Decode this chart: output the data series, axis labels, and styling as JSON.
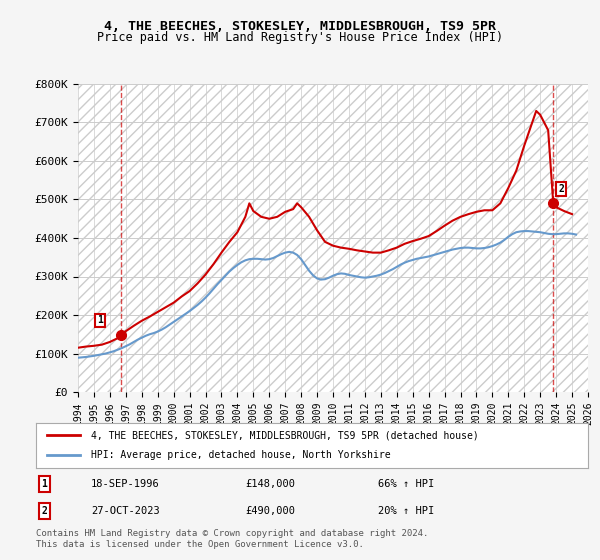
{
  "title": "4, THE BEECHES, STOKESLEY, MIDDLESBROUGH, TS9 5PR",
  "subtitle": "Price paid vs. HM Land Registry's House Price Index (HPI)",
  "legend_line1": "4, THE BEECHES, STOKESLEY, MIDDLESBROUGH, TS9 5PR (detached house)",
  "legend_line2": "HPI: Average price, detached house, North Yorkshire",
  "footnote": "Contains HM Land Registry data © Crown copyright and database right 2024.\nThis data is licensed under the Open Government Licence v3.0.",
  "annotation1_label": "1",
  "annotation1_date": "18-SEP-1996",
  "annotation1_price": "£148,000",
  "annotation1_hpi": "66% ↑ HPI",
  "annotation2_label": "2",
  "annotation2_date": "27-OCT-2023",
  "annotation2_price": "£490,000",
  "annotation2_hpi": "20% ↑ HPI",
  "hpi_color": "#6699cc",
  "price_color": "#cc0000",
  "background_color": "#f5f5f5",
  "plot_bg_color": "#ffffff",
  "ylim": [
    0,
    800000
  ],
  "yticks": [
    0,
    100000,
    200000,
    300000,
    400000,
    500000,
    600000,
    700000,
    800000
  ],
  "ytick_labels": [
    "£0",
    "£100K",
    "£200K",
    "£300K",
    "£400K",
    "£500K",
    "£600K",
    "£700K",
    "£800K"
  ],
  "hpi_x": [
    1994.0,
    1994.25,
    1994.5,
    1994.75,
    1995.0,
    1995.25,
    1995.5,
    1995.75,
    1996.0,
    1996.25,
    1996.5,
    1996.75,
    1997.0,
    1997.25,
    1997.5,
    1997.75,
    1998.0,
    1998.25,
    1998.5,
    1998.75,
    1999.0,
    1999.25,
    1999.5,
    1999.75,
    2000.0,
    2000.25,
    2000.5,
    2000.75,
    2001.0,
    2001.25,
    2001.5,
    2001.75,
    2002.0,
    2002.25,
    2002.5,
    2002.75,
    2003.0,
    2003.25,
    2003.5,
    2003.75,
    2004.0,
    2004.25,
    2004.5,
    2004.75,
    2005.0,
    2005.25,
    2005.5,
    2005.75,
    2006.0,
    2006.25,
    2006.5,
    2006.75,
    2007.0,
    2007.25,
    2007.5,
    2007.75,
    2008.0,
    2008.25,
    2008.5,
    2008.75,
    2009.0,
    2009.25,
    2009.5,
    2009.75,
    2010.0,
    2010.25,
    2010.5,
    2010.75,
    2011.0,
    2011.25,
    2011.5,
    2011.75,
    2012.0,
    2012.25,
    2012.5,
    2012.75,
    2013.0,
    2013.25,
    2013.5,
    2013.75,
    2014.0,
    2014.25,
    2014.5,
    2014.75,
    2015.0,
    2015.25,
    2015.5,
    2015.75,
    2016.0,
    2016.25,
    2016.5,
    2016.75,
    2017.0,
    2017.25,
    2017.5,
    2017.75,
    2018.0,
    2018.25,
    2018.5,
    2018.75,
    2019.0,
    2019.25,
    2019.5,
    2019.75,
    2020.0,
    2020.25,
    2020.5,
    2020.75,
    2021.0,
    2021.25,
    2021.5,
    2021.75,
    2022.0,
    2022.25,
    2022.5,
    2022.75,
    2023.0,
    2023.25,
    2023.5,
    2023.75,
    2024.0,
    2024.25,
    2024.5,
    2024.75,
    2025.0,
    2025.25
  ],
  "hpi_y": [
    89000,
    90000,
    91000,
    92500,
    94000,
    96000,
    98000,
    100000,
    103000,
    106000,
    110000,
    114000,
    119000,
    124000,
    130000,
    136000,
    141000,
    146000,
    150000,
    153000,
    157000,
    162000,
    168000,
    175000,
    182000,
    189000,
    196000,
    203000,
    210000,
    218000,
    226000,
    235000,
    245000,
    256000,
    268000,
    280000,
    291000,
    302000,
    313000,
    322000,
    330000,
    337000,
    342000,
    345000,
    346000,
    346000,
    345000,
    344000,
    345000,
    348000,
    353000,
    358000,
    362000,
    364000,
    362000,
    356000,
    345000,
    330000,
    315000,
    303000,
    295000,
    292000,
    293000,
    297000,
    302000,
    306000,
    308000,
    307000,
    304000,
    302000,
    300000,
    298000,
    297000,
    298000,
    300000,
    302000,
    305000,
    309000,
    314000,
    319000,
    325000,
    331000,
    336000,
    340000,
    343000,
    346000,
    348000,
    350000,
    352000,
    355000,
    358000,
    361000,
    364000,
    367000,
    370000,
    372000,
    374000,
    375000,
    375000,
    374000,
    373000,
    373000,
    374000,
    376000,
    379000,
    383000,
    388000,
    395000,
    403000,
    410000,
    415000,
    417000,
    418000,
    418000,
    417000,
    416000,
    415000,
    413000,
    411000,
    410000,
    410000,
    411000,
    412000,
    412000,
    411000,
    409000
  ],
  "price_x": [
    1994.0,
    1994.5,
    1995.0,
    1995.5,
    1996.0,
    1996.5,
    1996.72,
    1997.0,
    1997.5,
    1998.0,
    1998.5,
    1999.0,
    1999.5,
    2000.0,
    2000.5,
    2001.0,
    2001.5,
    2002.0,
    2002.5,
    2003.0,
    2003.5,
    2004.0,
    2004.5,
    2004.75,
    2005.0,
    2005.5,
    2006.0,
    2006.5,
    2007.0,
    2007.5,
    2007.75,
    2008.0,
    2008.5,
    2009.0,
    2009.5,
    2010.0,
    2010.5,
    2011.0,
    2011.5,
    2012.0,
    2012.5,
    2013.0,
    2013.5,
    2014.0,
    2014.5,
    2015.0,
    2015.5,
    2016.0,
    2016.5,
    2017.0,
    2017.5,
    2018.0,
    2018.5,
    2019.0,
    2019.5,
    2020.0,
    2020.5,
    2021.0,
    2021.5,
    2022.0,
    2022.5,
    2022.75,
    2023.0,
    2023.5,
    2023.82,
    2024.0,
    2024.5,
    2025.0
  ],
  "price_y": [
    115000,
    118000,
    120000,
    123000,
    130000,
    140000,
    148000,
    158000,
    172000,
    185000,
    196000,
    208000,
    220000,
    232000,
    248000,
    262000,
    282000,
    305000,
    332000,
    362000,
    390000,
    415000,
    455000,
    490000,
    470000,
    455000,
    450000,
    455000,
    468000,
    475000,
    490000,
    480000,
    455000,
    420000,
    390000,
    380000,
    375000,
    372000,
    368000,
    365000,
    362000,
    362000,
    368000,
    375000,
    385000,
    392000,
    398000,
    405000,
    418000,
    432000,
    445000,
    455000,
    462000,
    468000,
    472000,
    472000,
    490000,
    530000,
    575000,
    640000,
    700000,
    730000,
    720000,
    680000,
    490000,
    480000,
    470000,
    462000
  ],
  "sale1_x": 1996.72,
  "sale1_y": 148000,
  "sale2_x": 2023.82,
  "sale2_y": 490000,
  "xmin": 1994,
  "xmax": 2026,
  "xticks": [
    1994,
    1995,
    1996,
    1997,
    1998,
    1999,
    2000,
    2001,
    2002,
    2003,
    2004,
    2005,
    2006,
    2007,
    2008,
    2009,
    2010,
    2011,
    2012,
    2013,
    2014,
    2015,
    2016,
    2017,
    2018,
    2019,
    2020,
    2021,
    2022,
    2023,
    2024,
    2025,
    2026
  ]
}
